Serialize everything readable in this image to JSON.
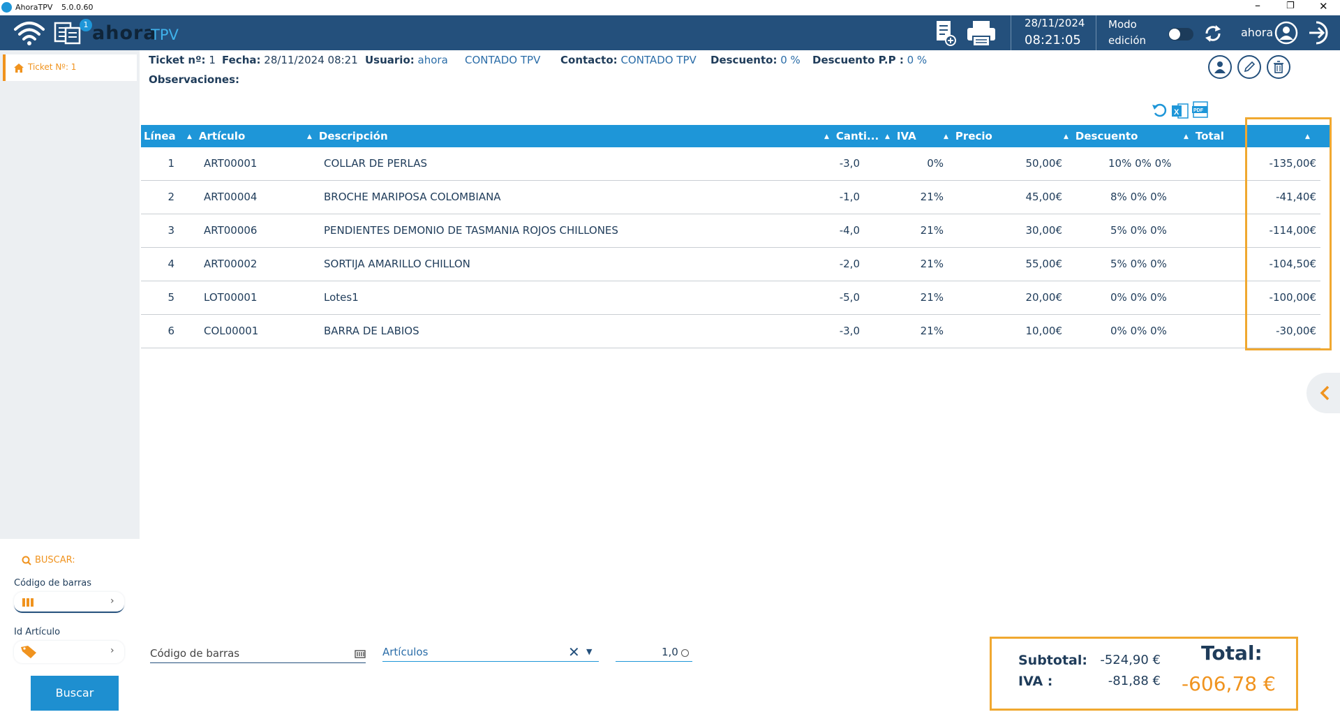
{
  "window": {
    "app_name": "AhoraTPV",
    "version": "5.0.0.60"
  },
  "topbar": {
    "badge_count": "1",
    "logo_ahora": "ahora",
    "logo_tpv": "TPV",
    "date": "28/11/2024",
    "time": "08:21:05",
    "mode_line1": "Modo",
    "mode_line2": "edición",
    "user": "ahora"
  },
  "sidebar": {
    "tab_label": "Ticket Nº: 1",
    "search_title": "BUSCAR:",
    "barcode_label": "Código de barras",
    "id_label": "Id Artículo",
    "search_button": "Buscar"
  },
  "header": {
    "ticket_label": "Ticket nº:",
    "ticket_value": "1",
    "fecha_label": "Fecha:",
    "fecha_value": "28/11/2024 08:21",
    "usuario_label": "Usuario:",
    "usuario_value": "ahora",
    "cliente_value": "CONTADO TPV",
    "contacto_label": "Contacto:",
    "contacto_value": "CONTADO TPV",
    "descuento_label": "Descuento:",
    "descuento_value": "0 %",
    "descuento_pp_label": "Descuento P.P :",
    "descuento_pp_value": "0 %",
    "observaciones_label": "Observaciones:"
  },
  "table": {
    "columns": [
      "Línea",
      "Artículo",
      "Descripción",
      "Canti...",
      "IVA",
      "Precio",
      "Descuento",
      "Total",
      ""
    ],
    "rows": [
      {
        "linea": "1",
        "articulo": "ART00001",
        "descripcion": "COLLAR DE PERLAS",
        "cantidad": "-3,0",
        "iva": "0%",
        "precio": "50,00€",
        "descuento": "10% 0% 0%",
        "total": "-135,00€"
      },
      {
        "linea": "2",
        "articulo": "ART00004",
        "descripcion": "BROCHE MARIPOSA COLOMBIANA",
        "cantidad": "-1,0",
        "iva": "21%",
        "precio": "45,00€",
        "descuento": "8% 0% 0%",
        "total": "-41,40€"
      },
      {
        "linea": "3",
        "articulo": "ART00006",
        "descripcion": "PENDIENTES DEMONIO DE TASMANIA ROJOS CHILLONES",
        "cantidad": "-4,0",
        "iva": "21%",
        "precio": "30,00€",
        "descuento": "5% 0% 0%",
        "total": "-114,00€"
      },
      {
        "linea": "4",
        "articulo": "ART00002",
        "descripcion": "SORTIJA AMARILLO CHILLON",
        "cantidad": "-2,0",
        "iva": "21%",
        "precio": "55,00€",
        "descuento": "5% 0% 0%",
        "total": "-104,50€"
      },
      {
        "linea": "5",
        "articulo": "LOT00001",
        "descripcion": "Lotes1",
        "cantidad": "-5,0",
        "iva": "21%",
        "precio": "20,00€",
        "descuento": "0% 0% 0%",
        "total": "-100,00€"
      },
      {
        "linea": "6",
        "articulo": "COL00001",
        "descripcion": "BARRA DE LABIOS",
        "cantidad": "-3,0",
        "iva": "21%",
        "precio": "10,00€",
        "descuento": "0% 0% 0%",
        "total": "-30,00€"
      }
    ]
  },
  "bottom": {
    "barcode_placeholder": "Código de barras",
    "articulos_value": "Artículos",
    "quantity_value": "1,0"
  },
  "totals": {
    "subtotal_label": "Subtotal:",
    "subtotal_value": "-524,90 €",
    "iva_label": "IVA :",
    "iva_value": "-81,88 €",
    "total_label": "Total:",
    "total_value": "-606,78 €"
  },
  "colors": {
    "primary": "#24507c",
    "table_header": "#1e96d8",
    "accent": "#f0931e",
    "highlight": "#f0a830"
  }
}
